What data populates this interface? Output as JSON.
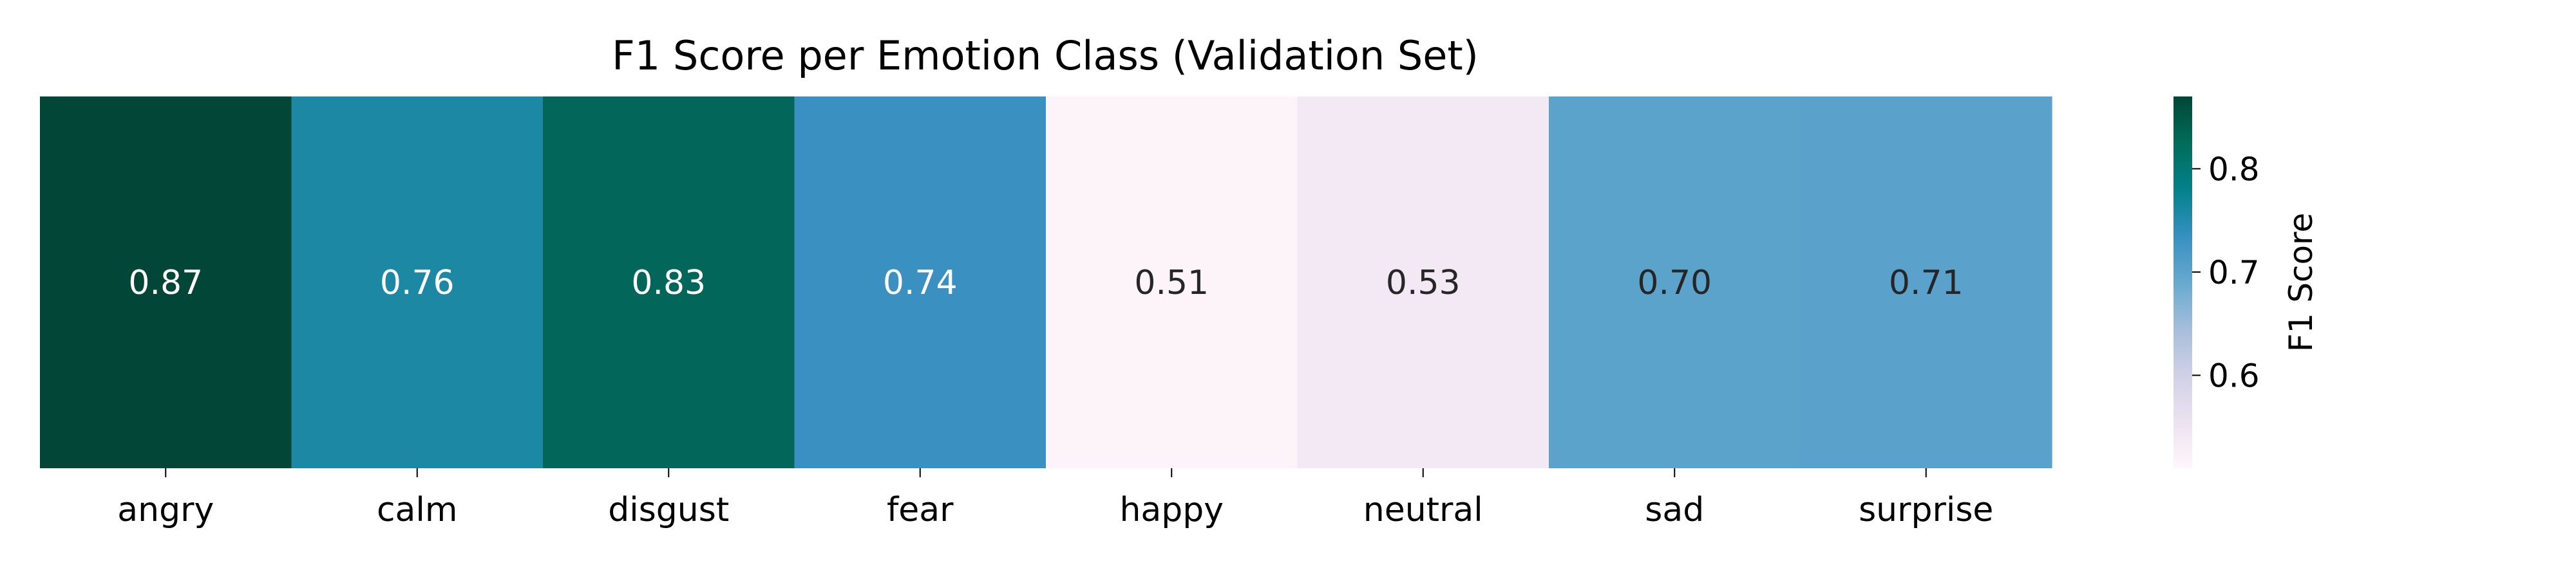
{
  "chart_data": {
    "type": "heatmap",
    "title": "F1 Score per Emotion Class (Validation Set)",
    "xlabel": "",
    "ylabel": "",
    "categories": [
      "angry",
      "calm",
      "disgust",
      "fear",
      "happy",
      "neutral",
      "sad",
      "surprise"
    ],
    "values": [
      0.87,
      0.76,
      0.83,
      0.74,
      0.51,
      0.53,
      0.7,
      0.71
    ],
    "value_labels": [
      "0.87",
      "0.76",
      "0.83",
      "0.74",
      "0.51",
      "0.53",
      "0.70",
      "0.71"
    ],
    "colormap": "PuBuGn",
    "vmin": 0.51,
    "vmax": 0.87,
    "colorbar": {
      "label": "F1 Score",
      "ticks": [
        0.6,
        0.7,
        0.8
      ],
      "tick_labels": [
        "0.6",
        "0.7",
        "0.8"
      ]
    },
    "grid": false,
    "legend": "colorbar-right"
  },
  "colors": {
    "cells": [
      "#014636",
      "#1d88a3",
      "#02675a",
      "#3a90c0",
      "#fdf4fa",
      "#f3e9f4",
      "#5ca3cc",
      "#5aa2cc"
    ],
    "gradient": [
      "#fff7fb",
      "#ece2f0",
      "#d0d1e6",
      "#a6bddb",
      "#67a9cf",
      "#3690c0",
      "#02818a",
      "#016c59",
      "#014636"
    ]
  }
}
